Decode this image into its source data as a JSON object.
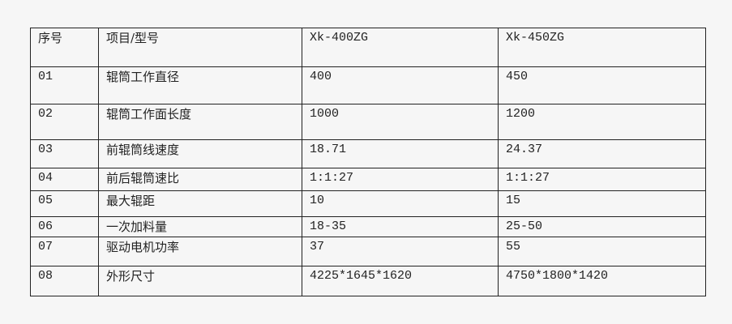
{
  "header": [
    "序号",
    "项目/型号",
    "Xk-400ZG",
    "Xk-450ZG"
  ],
  "rows": [
    [
      "01",
      "辊筒工作直径",
      "400",
      "450"
    ],
    [
      "02",
      "辊筒工作面长度",
      "1000",
      "1200"
    ],
    [
      "03",
      "前辊筒线速度",
      "18.71",
      "24.37"
    ],
    [
      "04",
      "前后辊筒速比",
      "1:1:27",
      "1:1:27"
    ],
    [
      "05",
      "最大辊距",
      "10",
      "15"
    ],
    [
      "06",
      "一次加料量",
      "18-35",
      "25-50"
    ],
    [
      "07",
      "驱动电机功率",
      "37",
      "55"
    ],
    [
      "08",
      "外形尺寸",
      "4225*1645*1620",
      "4750*1800*1420"
    ]
  ]
}
